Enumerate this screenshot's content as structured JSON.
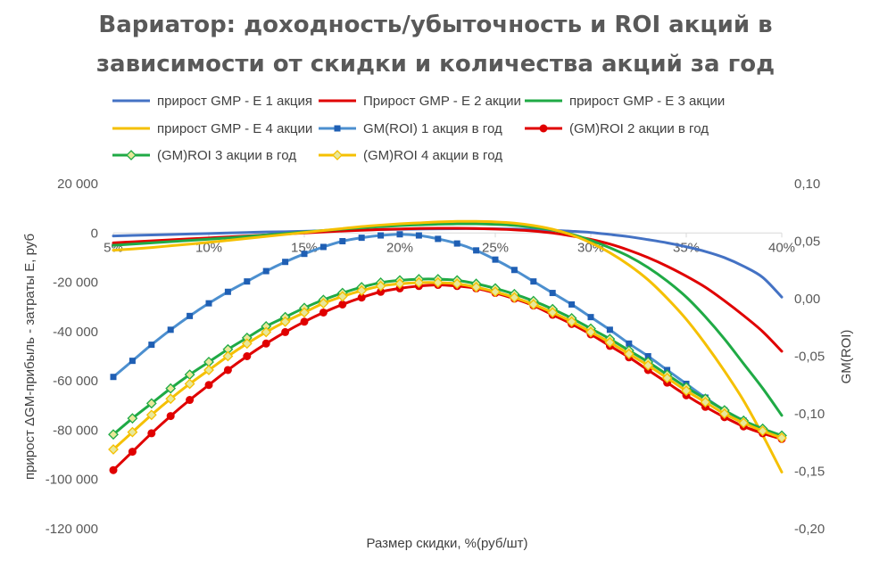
{
  "chart_data": {
    "type": "line",
    "title_lines": [
      "Вариатор: доходность/убыточность и ROI акций в",
      "зависимости от скидки и количества акций за год"
    ],
    "xlabel": "Размер скидки, %(руб/шт)",
    "ylabel_left": "прирост ΔGM-прибыль - затраты E, руб",
    "ylabel_right": "GM(ROI)",
    "x": [
      5,
      6,
      7,
      8,
      9,
      10,
      11,
      12,
      13,
      14,
      15,
      16,
      17,
      18,
      19,
      20,
      21,
      22,
      23,
      24,
      25,
      26,
      27,
      28,
      29,
      30,
      31,
      32,
      33,
      34,
      35,
      36,
      37,
      38,
      39,
      40
    ],
    "x_ticks": [
      5,
      10,
      15,
      20,
      25,
      30,
      35,
      40
    ],
    "x_tick_labels": [
      "5%",
      "10%",
      "15%",
      "20%",
      "25%",
      "30%",
      "35%",
      "40%"
    ],
    "x_range": [
      5,
      40
    ],
    "ylim_left": [
      -120000,
      20000
    ],
    "y_ticks_left": [
      20000,
      0,
      -20000,
      -40000,
      -60000,
      -80000,
      -100000,
      -120000
    ],
    "y_tick_labels_left": [
      "20 000",
      "0",
      "-20 000",
      "-40 000",
      "-60 000",
      "-80 000",
      "-100 000",
      "-120 000"
    ],
    "ylim_right": [
      -0.2,
      0.1
    ],
    "y_ticks_right": [
      0.1,
      0.05,
      0.0,
      -0.05,
      -0.1,
      -0.15,
      -0.2
    ],
    "y_tick_labels_right": [
      "0,10",
      "0,05",
      "0,00",
      "-0,05",
      "-0,10",
      "-0,15",
      "-0,20"
    ],
    "grid": false,
    "legend_position": "top",
    "series": [
      {
        "name": "прирост GMP - E 1 акция",
        "axis": "left",
        "color": "#4472c4",
        "marker": "none",
        "values": [
          -1200,
          -1000,
          -800,
          -600,
          -400,
          -200,
          0,
          200,
          400,
          500,
          700,
          900,
          1100,
          1200,
          1400,
          1500,
          1600,
          1700,
          1750,
          1750,
          1700,
          1600,
          1400,
          1100,
          700,
          200,
          -600,
          -1500,
          -2700,
          -4000,
          -5600,
          -7500,
          -10000,
          -13500,
          -18000,
          -26000
        ]
      },
      {
        "name": "Прирост GMP - E 2 акции",
        "axis": "left",
        "color": "#e00000",
        "marker": "none",
        "values": [
          -4000,
          -3600,
          -3200,
          -2800,
          -2400,
          -2000,
          -1600,
          -1200,
          -800,
          -400,
          0,
          400,
          800,
          1100,
          1400,
          1600,
          1800,
          1900,
          1900,
          1800,
          1600,
          1300,
          800,
          0,
          -1200,
          -2600,
          -4500,
          -7000,
          -10000,
          -13500,
          -17500,
          -22000,
          -27500,
          -33500,
          -40000,
          -48000
        ]
      },
      {
        "name": "прирост GMP - E 3 акции",
        "axis": "left",
        "color": "#1faa45",
        "marker": "none",
        "values": [
          -5000,
          -4500,
          -4000,
          -3500,
          -3000,
          -2500,
          -2000,
          -1400,
          -800,
          -200,
          400,
          1000,
          1600,
          2100,
          2600,
          3000,
          3300,
          3600,
          3700,
          3700,
          3500,
          3100,
          2300,
          1200,
          -500,
          -3000,
          -6000,
          -9500,
          -14000,
          -19500,
          -26000,
          -34000,
          -43000,
          -53000,
          -63000,
          -74000
        ]
      },
      {
        "name": "прирост GMP - E 4 акции",
        "axis": "left",
        "color": "#f5c000",
        "marker": "none",
        "values": [
          -7000,
          -6500,
          -5900,
          -5200,
          -4500,
          -3800,
          -3000,
          -2200,
          -1400,
          -600,
          200,
          1000,
          1800,
          2600,
          3200,
          3700,
          4100,
          4500,
          4700,
          4700,
          4500,
          4000,
          3000,
          1500,
          -800,
          -4000,
          -8000,
          -13000,
          -19000,
          -26500,
          -35000,
          -45000,
          -56000,
          -68000,
          -82000,
          -97000
        ]
      },
      {
        "name": "GM(ROI) 1 акция в год",
        "axis": "right",
        "color": "#4c8fcf",
        "marker": "square",
        "markerColor": "#1f5fb4",
        "values": [
          -0.068,
          -0.054,
          -0.04,
          -0.027,
          -0.015,
          -0.004,
          0.006,
          0.015,
          0.024,
          0.032,
          0.039,
          0.045,
          0.05,
          0.053,
          0.055,
          0.056,
          0.055,
          0.052,
          0.048,
          0.042,
          0.034,
          0.025,
          0.015,
          0.005,
          -0.005,
          -0.016,
          -0.027,
          -0.039,
          -0.05,
          -0.062,
          -0.074,
          -0.086,
          -0.097,
          -0.106,
          -0.114,
          -0.12
        ]
      },
      {
        "name": "(GM)ROI 2 акции в год",
        "axis": "right",
        "color": "#e00000",
        "marker": "circle",
        "markerColor": "#e00000",
        "values": [
          -0.149,
          -0.133,
          -0.117,
          -0.102,
          -0.088,
          -0.075,
          -0.062,
          -0.05,
          -0.039,
          -0.029,
          -0.02,
          -0.012,
          -0.005,
          0.001,
          0.006,
          0.009,
          0.011,
          0.012,
          0.011,
          0.009,
          0.005,
          0.0,
          -0.006,
          -0.014,
          -0.022,
          -0.031,
          -0.041,
          -0.051,
          -0.062,
          -0.073,
          -0.084,
          -0.094,
          -0.103,
          -0.111,
          -0.117,
          -0.122
        ]
      },
      {
        "name": "(GM)ROI 3 акции в год",
        "axis": "right",
        "color": "#1faa45",
        "marker": "diamond",
        "markerColor": "#1faa45",
        "values": [
          -0.118,
          -0.104,
          -0.091,
          -0.078,
          -0.066,
          -0.055,
          -0.044,
          -0.034,
          -0.024,
          -0.016,
          -0.008,
          -0.001,
          0.005,
          0.01,
          0.014,
          0.016,
          0.017,
          0.017,
          0.016,
          0.013,
          0.009,
          0.004,
          -0.002,
          -0.009,
          -0.017,
          -0.026,
          -0.035,
          -0.045,
          -0.055,
          -0.066,
          -0.077,
          -0.087,
          -0.097,
          -0.106,
          -0.113,
          -0.119
        ]
      },
      {
        "name": "(GM)ROI 4 акции в год",
        "axis": "right",
        "color": "#f5c000",
        "marker": "diamond",
        "markerColor": "#f5c000",
        "values": [
          -0.131,
          -0.116,
          -0.101,
          -0.087,
          -0.074,
          -0.062,
          -0.05,
          -0.039,
          -0.029,
          -0.02,
          -0.012,
          -0.004,
          0.002,
          0.007,
          0.011,
          0.013,
          0.014,
          0.014,
          0.013,
          0.01,
          0.006,
          0.001,
          -0.005,
          -0.012,
          -0.02,
          -0.029,
          -0.038,
          -0.048,
          -0.058,
          -0.069,
          -0.08,
          -0.09,
          -0.1,
          -0.108,
          -0.115,
          -0.121
        ]
      }
    ]
  }
}
